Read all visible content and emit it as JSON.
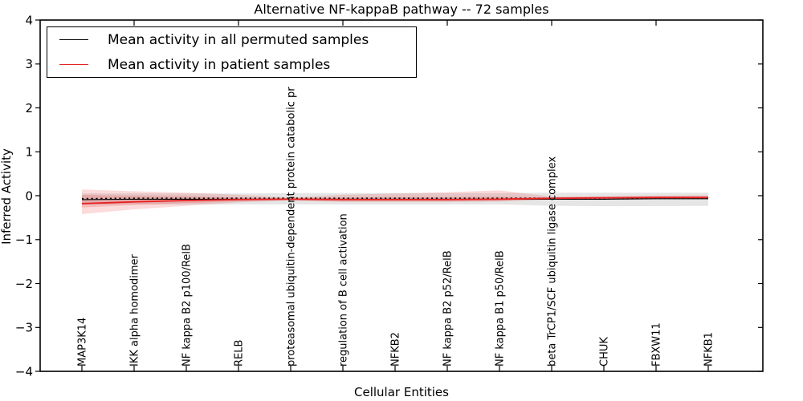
{
  "chart_data": {
    "type": "line",
    "title": "Alternative NF-kappaB pathway -- 72 samples",
    "xlabel": "Cellular Entities",
    "ylabel": "Inferred Activity",
    "ylim": [
      -4,
      4
    ],
    "yticks": [
      4,
      3,
      2,
      1,
      0,
      -1,
      -2,
      -3,
      -4
    ],
    "ytick_labels": [
      "4",
      "3",
      "2",
      "1",
      "0",
      "−1",
      "−2",
      "−3",
      "−4"
    ],
    "grid": false,
    "legend_position": "upper left",
    "categories": [
      "MAP3K14",
      "IKK alpha homodimer",
      "NF kappa B2 p100/RelB",
      "RELB",
      "proteasomal ubiquitin-dependent protein catabolic pr",
      "regulation of B cell activation",
      "NFKB2",
      "NF kappa B2 p52/RelB",
      "NF kappa B1 p50/RelB",
      "beta TrCP1/SCF ubiquitin ligase complex",
      "CHUK",
      "FBXW11",
      "NFKB1"
    ],
    "series": [
      {
        "name": "Mean activity in all permuted samples",
        "color": "#000000",
        "line_style": "solid-with-dotted-overlay",
        "values": [
          -0.09,
          -0.08,
          -0.08,
          -0.08,
          -0.08,
          -0.08,
          -0.08,
          -0.08,
          -0.08,
          -0.08,
          -0.08,
          -0.07,
          -0.07
        ]
      },
      {
        "name": "Mean activity in patient samples",
        "color": "#e62020",
        "line_style": "solid",
        "values": [
          -0.18,
          -0.14,
          -0.11,
          -0.09,
          -0.08,
          -0.09,
          -0.09,
          -0.09,
          -0.08,
          -0.06,
          -0.05,
          -0.04,
          -0.04
        ]
      }
    ],
    "bands": [
      {
        "name": "permuted-samples-band",
        "color": "#000000",
        "opacity": 0.1,
        "upper": [
          0.05,
          0.05,
          0.05,
          0.05,
          0.06,
          0.06,
          0.06,
          0.06,
          0.06,
          0.07,
          0.07,
          0.07,
          0.07
        ],
        "lower": [
          -0.21,
          -0.2,
          -0.2,
          -0.2,
          -0.2,
          -0.2,
          -0.2,
          -0.2,
          -0.2,
          -0.23,
          -0.24,
          -0.24,
          -0.23
        ]
      },
      {
        "name": "patient-samples-band-outer",
        "color": "#e62020",
        "opacity": 0.16,
        "upper": [
          0.14,
          0.1,
          0.07,
          0.02,
          -0.04,
          0.02,
          0.05,
          0.08,
          0.12,
          -0.02,
          -0.01,
          0.0,
          0.01
        ],
        "lower": [
          -0.42,
          -0.31,
          -0.23,
          -0.15,
          -0.11,
          -0.14,
          -0.14,
          -0.14,
          -0.13,
          -0.09,
          -0.08,
          -0.07,
          -0.08
        ]
      },
      {
        "name": "patient-samples-band-inner",
        "color": "#e62020",
        "opacity": 0.16,
        "upper": [
          0.02,
          0.0,
          -0.01,
          -0.04,
          -0.06,
          -0.04,
          -0.03,
          -0.03,
          -0.02,
          -0.04,
          -0.03,
          -0.02,
          -0.02
        ],
        "lower": [
          -0.27,
          -0.21,
          -0.17,
          -0.13,
          -0.1,
          -0.13,
          -0.13,
          -0.13,
          -0.12,
          -0.08,
          -0.07,
          -0.06,
          -0.06
        ]
      }
    ]
  }
}
